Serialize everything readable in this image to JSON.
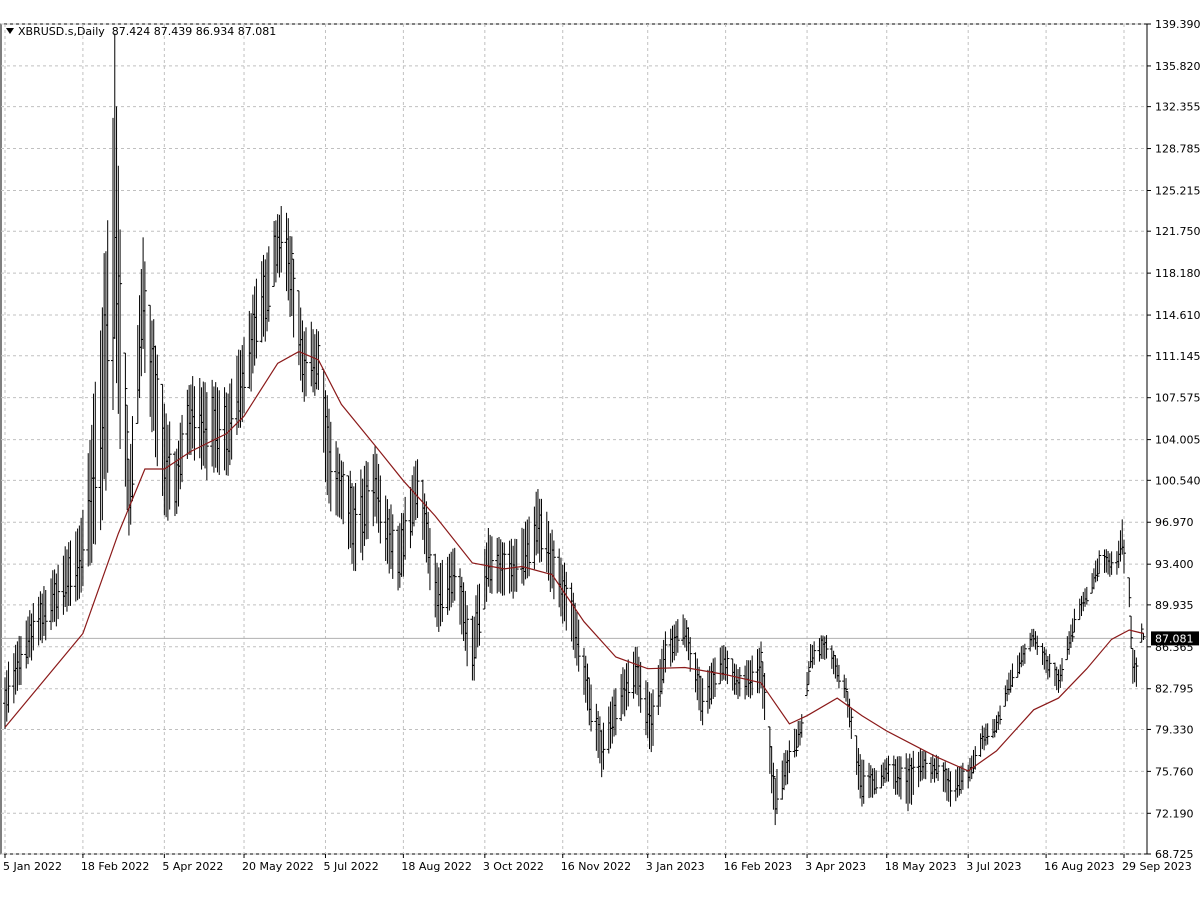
{
  "header": {
    "symbol": "XBRUSD.s,Daily",
    "ohlc": "87.424 87.439 86.934 87.081"
  },
  "colors": {
    "bars": "#000000",
    "moving_average": "#8b1a1a",
    "grid": "#c0c0c0",
    "price_line": "#b0b0b0",
    "price_tag_bg": "#000000",
    "price_tag_text": "#ffffff"
  },
  "chart_data": {
    "type": "ohlc-bar",
    "symbol": "XBRUSD.s",
    "timeframe": "Daily",
    "last_price": "87.081",
    "ylim": [
      68.725,
      139.39
    ],
    "y_ticks": [
      "139.390",
      "135.820",
      "132.355",
      "128.785",
      "125.215",
      "121.750",
      "118.180",
      "114.610",
      "111.145",
      "107.575",
      "104.005",
      "100.540",
      "96.970",
      "93.400",
      "89.935",
      "86.365",
      "82.795",
      "79.330",
      "75.760",
      "72.190",
      "68.725"
    ],
    "x_ticks": [
      "5 Jan 2022",
      "18 Feb 2022",
      "5 Apr 2022",
      "20 May 2022",
      "5 Jul 2022",
      "18 Aug 2022",
      "3 Oct 2022",
      "16 Nov 2022",
      "3 Jan 2023",
      "16 Feb 2023",
      "3 Apr 2023",
      "18 May 2023",
      "3 Jul 2023",
      "16 Aug 2023",
      "29 Sep 2023"
    ],
    "grid": true,
    "price_anchors": [
      {
        "date": "2022-01-05",
        "low": 79.8,
        "high": 84.2
      },
      {
        "date": "2022-01-20",
        "low": 85.5,
        "high": 89.5
      },
      {
        "date": "2022-02-03",
        "low": 88.5,
        "high": 93.0
      },
      {
        "date": "2022-02-18",
        "low": 91.0,
        "high": 97.5
      },
      {
        "date": "2022-02-28",
        "low": 96.0,
        "high": 113.0
      },
      {
        "date": "2022-03-08",
        "low": 110.0,
        "high": 136.0
      },
      {
        "date": "2022-03-16",
        "low": 95.5,
        "high": 102.0
      },
      {
        "date": "2022-03-24",
        "low": 111.0,
        "high": 120.5
      },
      {
        "date": "2022-04-05",
        "low": 98.0,
        "high": 107.5
      },
      {
        "date": "2022-04-11",
        "low": 97.5,
        "high": 103.0
      },
      {
        "date": "2022-04-20",
        "low": 103.0,
        "high": 109.0
      },
      {
        "date": "2022-04-29",
        "low": 101.0,
        "high": 108.5
      },
      {
        "date": "2022-05-11",
        "low": 101.0,
        "high": 108.0
      },
      {
        "date": "2022-05-20",
        "low": 106.5,
        "high": 113.0
      },
      {
        "date": "2022-06-01",
        "low": 113.0,
        "high": 120.0
      },
      {
        "date": "2022-06-08",
        "low": 118.5,
        "high": 123.5
      },
      {
        "date": "2022-06-14",
        "low": 116.0,
        "high": 123.0
      },
      {
        "date": "2022-06-23",
        "low": 107.5,
        "high": 113.5
      },
      {
        "date": "2022-07-01",
        "low": 108.5,
        "high": 113.5
      },
      {
        "date": "2022-07-06",
        "low": 98.5,
        "high": 107.0
      },
      {
        "date": "2022-07-14",
        "low": 97.0,
        "high": 102.0
      },
      {
        "date": "2022-07-22",
        "low": 92.5,
        "high": 100.0
      },
      {
        "date": "2022-08-02",
        "low": 97.0,
        "high": 103.0
      },
      {
        "date": "2022-08-09",
        "low": 93.0,
        "high": 98.5
      },
      {
        "date": "2022-08-16",
        "low": 91.5,
        "high": 97.0
      },
      {
        "date": "2022-08-26",
        "low": 97.5,
        "high": 102.5
      },
      {
        "date": "2022-09-07",
        "low": 87.5,
        "high": 93.0
      },
      {
        "date": "2022-09-16",
        "low": 90.0,
        "high": 94.5
      },
      {
        "date": "2022-09-26",
        "low": 83.0,
        "high": 88.5
      },
      {
        "date": "2022-10-05",
        "low": 91.5,
        "high": 96.5
      },
      {
        "date": "2022-10-14",
        "low": 90.5,
        "high": 95.0
      },
      {
        "date": "2022-10-21",
        "low": 91.0,
        "high": 95.5
      },
      {
        "date": "2022-11-02",
        "low": 94.0,
        "high": 99.5
      },
      {
        "date": "2022-11-09",
        "low": 91.5,
        "high": 96.5
      },
      {
        "date": "2022-11-21",
        "low": 86.5,
        "high": 91.5
      },
      {
        "date": "2022-11-28",
        "low": 82.0,
        "high": 86.0
      },
      {
        "date": "2022-12-08",
        "low": 75.5,
        "high": 79.5
      },
      {
        "date": "2022-12-16",
        "low": 79.0,
        "high": 83.0
      },
      {
        "date": "2022-12-27",
        "low": 82.5,
        "high": 86.5
      },
      {
        "date": "2023-01-05",
        "low": 77.5,
        "high": 82.5
      },
      {
        "date": "2023-01-13",
        "low": 84.0,
        "high": 87.5
      },
      {
        "date": "2023-01-24",
        "low": 86.5,
        "high": 89.0
      },
      {
        "date": "2023-02-03",
        "low": 79.5,
        "high": 83.5
      },
      {
        "date": "2023-02-14",
        "low": 83.5,
        "high": 86.5
      },
      {
        "date": "2023-02-24",
        "low": 82.0,
        "high": 84.5
      },
      {
        "date": "2023-03-08",
        "low": 82.5,
        "high": 86.5
      },
      {
        "date": "2023-03-16",
        "low": 71.5,
        "high": 75.5
      },
      {
        "date": "2023-03-22",
        "low": 74.5,
        "high": 77.5
      },
      {
        "date": "2023-03-31",
        "low": 78.5,
        "high": 80.5
      },
      {
        "date": "2023-04-05",
        "low": 84.5,
        "high": 86.5
      },
      {
        "date": "2023-04-14",
        "low": 85.5,
        "high": 87.5
      },
      {
        "date": "2023-04-25",
        "low": 81.5,
        "high": 83.5
      },
      {
        "date": "2023-05-04",
        "low": 72.5,
        "high": 76.5
      },
      {
        "date": "2023-05-12",
        "low": 74.0,
        "high": 76.0
      },
      {
        "date": "2023-05-18",
        "low": 75.0,
        "high": 77.0
      },
      {
        "date": "2023-05-30",
        "low": 72.5,
        "high": 77.0
      },
      {
        "date": "2023-06-07",
        "low": 75.0,
        "high": 77.5
      },
      {
        "date": "2023-06-15",
        "low": 75.0,
        "high": 77.0
      },
      {
        "date": "2023-06-23",
        "low": 73.0,
        "high": 76.0
      },
      {
        "date": "2023-07-03",
        "low": 74.5,
        "high": 76.5
      },
      {
        "date": "2023-07-11",
        "low": 77.5,
        "high": 79.5
      },
      {
        "date": "2023-07-19",
        "low": 79.0,
        "high": 80.5
      },
      {
        "date": "2023-07-28",
        "low": 83.0,
        "high": 85.0
      },
      {
        "date": "2023-08-09",
        "low": 86.5,
        "high": 88.0
      },
      {
        "date": "2023-08-16",
        "low": 84.0,
        "high": 86.0
      },
      {
        "date": "2023-08-23",
        "low": 82.5,
        "high": 84.5
      },
      {
        "date": "2023-09-01",
        "low": 87.5,
        "high": 89.5
      },
      {
        "date": "2023-09-08",
        "low": 90.0,
        "high": 91.5
      },
      {
        "date": "2023-09-15",
        "low": 92.5,
        "high": 94.5
      },
      {
        "date": "2023-09-25",
        "low": 92.5,
        "high": 94.5
      },
      {
        "date": "2023-09-28",
        "low": 94.0,
        "high": 97.0
      },
      {
        "date": "2023-10-02",
        "low": 89.5,
        "high": 92.0
      },
      {
        "date": "2023-10-04",
        "low": 83.5,
        "high": 86.5
      },
      {
        "date": "2023-10-06",
        "low": 83.0,
        "high": 85.5
      },
      {
        "date": "2023-10-09",
        "low": 86.9,
        "high": 88.5
      },
      {
        "date": "2023-10-10",
        "low": 86.9,
        "high": 87.5
      }
    ],
    "moving_average": [
      {
        "date": "2022-01-05",
        "value": 79.5
      },
      {
        "date": "2022-02-18",
        "value": 87.5
      },
      {
        "date": "2022-03-10",
        "value": 96.0
      },
      {
        "date": "2022-03-25",
        "value": 101.5
      },
      {
        "date": "2022-04-05",
        "value": 101.5
      },
      {
        "date": "2022-04-20",
        "value": 103.0
      },
      {
        "date": "2022-05-10",
        "value": 104.5
      },
      {
        "date": "2022-05-20",
        "value": 106.0
      },
      {
        "date": "2022-06-08",
        "value": 110.5
      },
      {
        "date": "2022-06-20",
        "value": 111.5
      },
      {
        "date": "2022-07-01",
        "value": 110.8
      },
      {
        "date": "2022-07-14",
        "value": 107.0
      },
      {
        "date": "2022-08-02",
        "value": 103.5
      },
      {
        "date": "2022-08-18",
        "value": 100.5
      },
      {
        "date": "2022-09-05",
        "value": 97.5
      },
      {
        "date": "2022-09-26",
        "value": 93.5
      },
      {
        "date": "2022-10-14",
        "value": 93.0
      },
      {
        "date": "2022-10-24",
        "value": 93.2
      },
      {
        "date": "2022-11-10",
        "value": 92.5
      },
      {
        "date": "2022-11-28",
        "value": 88.5
      },
      {
        "date": "2022-12-16",
        "value": 85.5
      },
      {
        "date": "2023-01-03",
        "value": 84.5
      },
      {
        "date": "2023-01-24",
        "value": 84.6
      },
      {
        "date": "2023-02-16",
        "value": 84.0
      },
      {
        "date": "2023-03-08",
        "value": 83.3
      },
      {
        "date": "2023-03-24",
        "value": 79.8
      },
      {
        "date": "2023-04-03",
        "value": 80.5
      },
      {
        "date": "2023-04-20",
        "value": 82.0
      },
      {
        "date": "2023-05-04",
        "value": 80.5
      },
      {
        "date": "2023-05-18",
        "value": 79.2
      },
      {
        "date": "2023-06-15",
        "value": 77.0
      },
      {
        "date": "2023-07-03",
        "value": 75.8
      },
      {
        "date": "2023-07-19",
        "value": 77.5
      },
      {
        "date": "2023-08-09",
        "value": 81.0
      },
      {
        "date": "2023-08-23",
        "value": 82.0
      },
      {
        "date": "2023-09-08",
        "value": 84.5
      },
      {
        "date": "2023-09-22",
        "value": 87.0
      },
      {
        "date": "2023-10-02",
        "value": 87.8
      },
      {
        "date": "2023-10-10",
        "value": 87.5
      }
    ]
  }
}
